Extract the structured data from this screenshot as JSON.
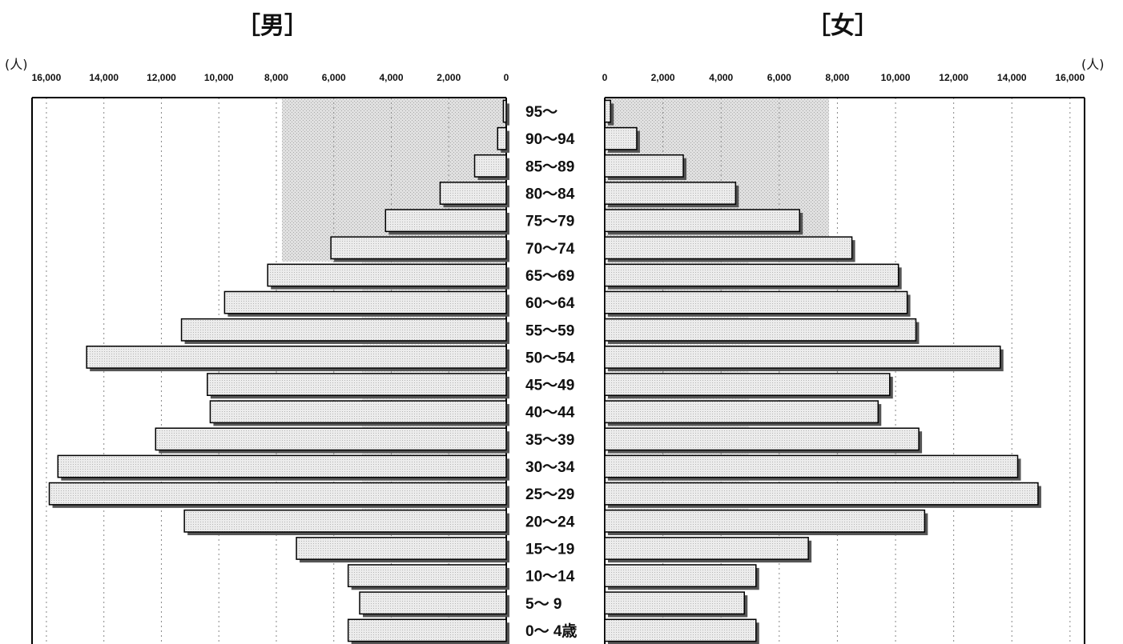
{
  "chart_data": {
    "type": "bar",
    "male_title": "［男］",
    "female_title": "［女］",
    "unit_label": "(人)",
    "age_groups": [
      "95～",
      "90～94",
      "85～89",
      "80～84",
      "75～79",
      "70～74",
      "65～69",
      "60～64",
      "55～59",
      "50～54",
      "45～49",
      "40～44",
      "35～39",
      "30～34",
      "25～29",
      "20～24",
      "15～19",
      "10～14",
      "5～ 9",
      "0～ 4歳"
    ],
    "series": [
      {
        "name": "男",
        "values": [
          100,
          300,
          1100,
          2300,
          4200,
          6100,
          8300,
          9800,
          11300,
          14600,
          10400,
          10300,
          12200,
          15600,
          15900,
          11200,
          7300,
          5500,
          5100,
          5500
        ]
      },
      {
        "name": "女",
        "values": [
          200,
          1100,
          2700,
          4500,
          6700,
          8500,
          10100,
          10400,
          10700,
          13600,
          9800,
          9400,
          10800,
          14200,
          14900,
          11000,
          7000,
          5200,
          4800,
          5200
        ]
      }
    ],
    "x_ticks": [
      0,
      2000,
      4000,
      6000,
      8000,
      10000,
      12000,
      14000,
      16000
    ],
    "x_tick_labels": [
      "0",
      "2,000",
      "4,000",
      "6,000",
      "8,000",
      "10,000",
      "12,000",
      "14,000",
      "16,000"
    ],
    "xlim": [
      0,
      16500
    ],
    "grid": true,
    "colors": {
      "bar_fill": "#e4e4e4",
      "bar_shadow": "#555555",
      "background_shade": "#d6d6d6",
      "frame": "#000000"
    }
  }
}
